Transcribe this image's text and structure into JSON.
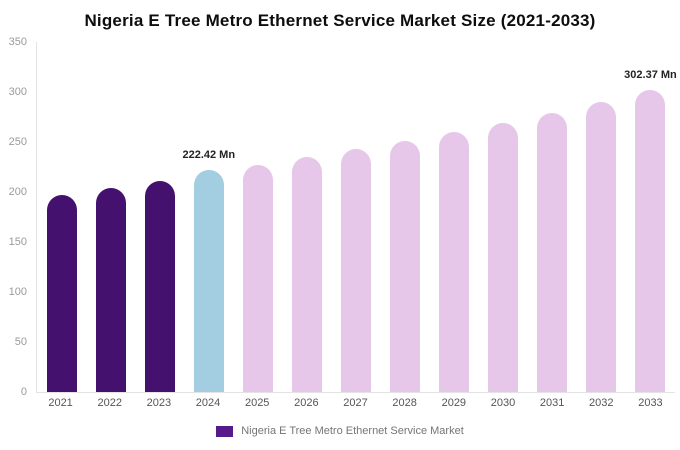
{
  "title": "Nigeria E Tree Metro Ethernet Service Market Size (2021-2033)",
  "chart_data": {
    "type": "bar",
    "title": "Nigeria E Tree Metro Ethernet Service Market Size (2021-2033)",
    "categories": [
      "2021",
      "2022",
      "2023",
      "2024",
      "2025",
      "2026",
      "2027",
      "2028",
      "2029",
      "2030",
      "2031",
      "2032",
      "2033"
    ],
    "values": [
      197,
      204,
      211,
      222.42,
      227,
      235,
      243,
      251,
      260,
      269,
      279,
      290,
      302.37
    ],
    "bar_colors": [
      "#44126e",
      "#44126e",
      "#44126e",
      "#a3cde0",
      "#e6c6e9",
      "#e6c6e9",
      "#e6c6e9",
      "#e6c6e9",
      "#e6c6e9",
      "#e6c6e9",
      "#e6c6e9",
      "#e6c6e9",
      "#e6c6e9"
    ],
    "data_labels": [
      {
        "index": 3,
        "text": "222.42 Mn"
      },
      {
        "index": 12,
        "text": "302.37 Mn"
      }
    ],
    "xlabel": "",
    "ylabel": "",
    "ylim": [
      0,
      350
    ],
    "yticks": [
      0,
      50,
      100,
      150,
      200,
      250,
      300,
      350
    ],
    "grid": false,
    "legend": {
      "label": "Nigeria E Tree Metro Ethernet Service Market",
      "color": "#571a8a",
      "position": "bottom"
    }
  }
}
